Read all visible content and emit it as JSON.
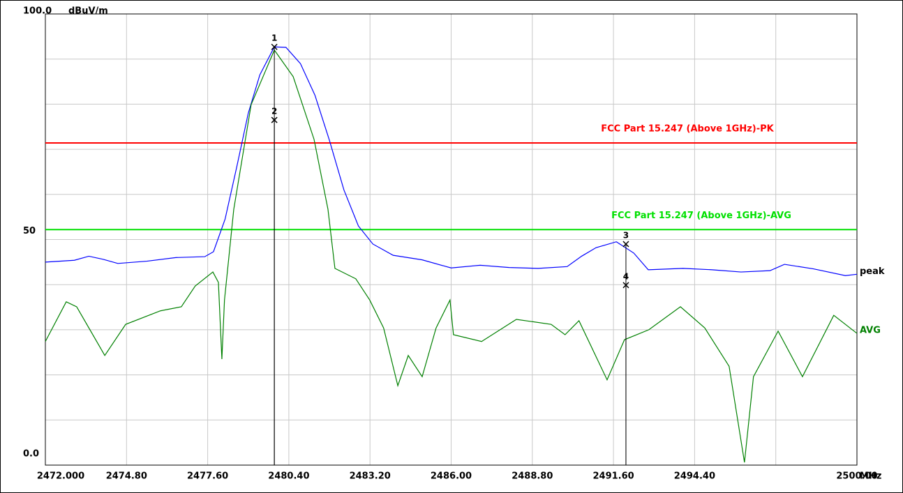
{
  "chart_data": {
    "type": "line",
    "ylabel": "dBuV/m",
    "xlabel": "MHz",
    "xlim": [
      2472,
      2500
    ],
    "ylim": [
      0,
      100
    ],
    "xticks": [
      {
        "value": 2472,
        "label": "2472.000"
      },
      {
        "value": 2474.8,
        "label": "2474.80"
      },
      {
        "value": 2477.6,
        "label": "2477.60"
      },
      {
        "value": 2480.4,
        "label": "2480.40"
      },
      {
        "value": 2483.2,
        "label": "2483.20"
      },
      {
        "value": 2486,
        "label": "2486.00"
      },
      {
        "value": 2488.8,
        "label": "2488.80"
      },
      {
        "value": 2491.6,
        "label": "2491.60"
      },
      {
        "value": 2494.4,
        "label": "2494.40"
      },
      {
        "value": 2497.2,
        "label": null
      },
      {
        "value": 2500,
        "label": "2500.00"
      }
    ],
    "yticks": [
      {
        "value": 0,
        "label": "0.0"
      },
      {
        "value": 10,
        "label": null
      },
      {
        "value": 20,
        "label": null
      },
      {
        "value": 30,
        "label": null
      },
      {
        "value": 40,
        "label": null
      },
      {
        "value": 50,
        "label": "50"
      },
      {
        "value": 60,
        "label": null
      },
      {
        "value": 70,
        "label": null
      },
      {
        "value": 80,
        "label": null
      },
      {
        "value": 90,
        "label": null
      },
      {
        "value": 100,
        "label": "100.0"
      }
    ],
    "grid": true,
    "limits": [
      {
        "name": "FCC Part 15.247 (Above 1GHz)-PK",
        "value": 71.4,
        "color": "#ff0000"
      },
      {
        "name": "FCC Part 15.247 (Above 1GHz)-AVG",
        "value": 52.2,
        "color": "#00e000"
      }
    ],
    "series": [
      {
        "name": "peak",
        "color": "#0000ff",
        "label_color": "#000000",
        "x": [
          2472.0,
          2473.0,
          2473.5,
          2474.0,
          2474.5,
          2475.5,
          2476.5,
          2477.5,
          2477.8,
          2478.2,
          2478.6,
          2479.0,
          2479.4,
          2479.9,
          2480.3,
          2480.8,
          2481.3,
          2481.8,
          2482.3,
          2482.8,
          2483.3,
          2484.0,
          2485.0,
          2486.0,
          2487.0,
          2488.0,
          2489.0,
          2490.0,
          2490.5,
          2491.0,
          2491.7,
          2492.3,
          2492.8,
          2494.0,
          2495.0,
          2496.0,
          2497.0,
          2497.5,
          2498.5,
          2499.6,
          2500.0
        ],
        "values": [
          45.0,
          45.4,
          46.3,
          45.6,
          44.7,
          45.2,
          46.0,
          46.2,
          47.3,
          54.5,
          66,
          78,
          86.5,
          92.7,
          92.6,
          89,
          82,
          72,
          61,
          53,
          49,
          46.5,
          45.5,
          43.7,
          44.3,
          43.8,
          43.6,
          44.0,
          46.3,
          48.2,
          49.5,
          47.0,
          43.3,
          43.6,
          43.3,
          42.8,
          43.1,
          44.5,
          43.5,
          42.0,
          42.3
        ]
      },
      {
        "name": "AVG",
        "color": "#008000",
        "label_color": "#008000",
        "x": [
          2472.0,
          2472.72,
          2473.08,
          2474.05,
          2474.77,
          2475.97,
          2476.69,
          2477.17,
          2477.78,
          2477.97,
          2478.09,
          2478.18,
          2478.5,
          2479.1,
          2479.9,
          2480.55,
          2481.27,
          2481.75,
          2481.99,
          2482.71,
          2483.19,
          2483.67,
          2484.16,
          2484.52,
          2485.0,
          2485.48,
          2485.96,
          2486.08,
          2487.05,
          2488.25,
          2489.45,
          2489.93,
          2490.41,
          2491.38,
          2491.98,
          2492.82,
          2493.91,
          2494.75,
          2495.59,
          2496.12,
          2496.43,
          2497.28,
          2498.12,
          2499.2,
          2500.0
        ],
        "values": [
          27.4,
          36.2,
          35.1,
          24.3,
          31.2,
          34.2,
          35.1,
          39.7,
          42.8,
          40.5,
          23.5,
          36.6,
          56.7,
          79.9,
          92.0,
          86.1,
          72.2,
          56.7,
          43.6,
          41.3,
          36.6,
          30.4,
          17.6,
          24.3,
          19.6,
          30.4,
          36.6,
          28.9,
          27.4,
          32.3,
          31.2,
          28.9,
          32.0,
          18.9,
          27.8,
          30.0,
          35.1,
          30.4,
          21.9,
          0.6,
          19.6,
          29.7,
          19.6,
          33.2,
          29.2
        ]
      }
    ],
    "markers": [
      {
        "label": "1",
        "x": 2479.9,
        "value": 92.7
      },
      {
        "label": "2",
        "x": 2479.9,
        "value": 76.5
      },
      {
        "label": "3",
        "x": 2492.03,
        "value": 49.0
      },
      {
        "label": "4",
        "x": 2492.03,
        "value": 39.9
      }
    ]
  }
}
